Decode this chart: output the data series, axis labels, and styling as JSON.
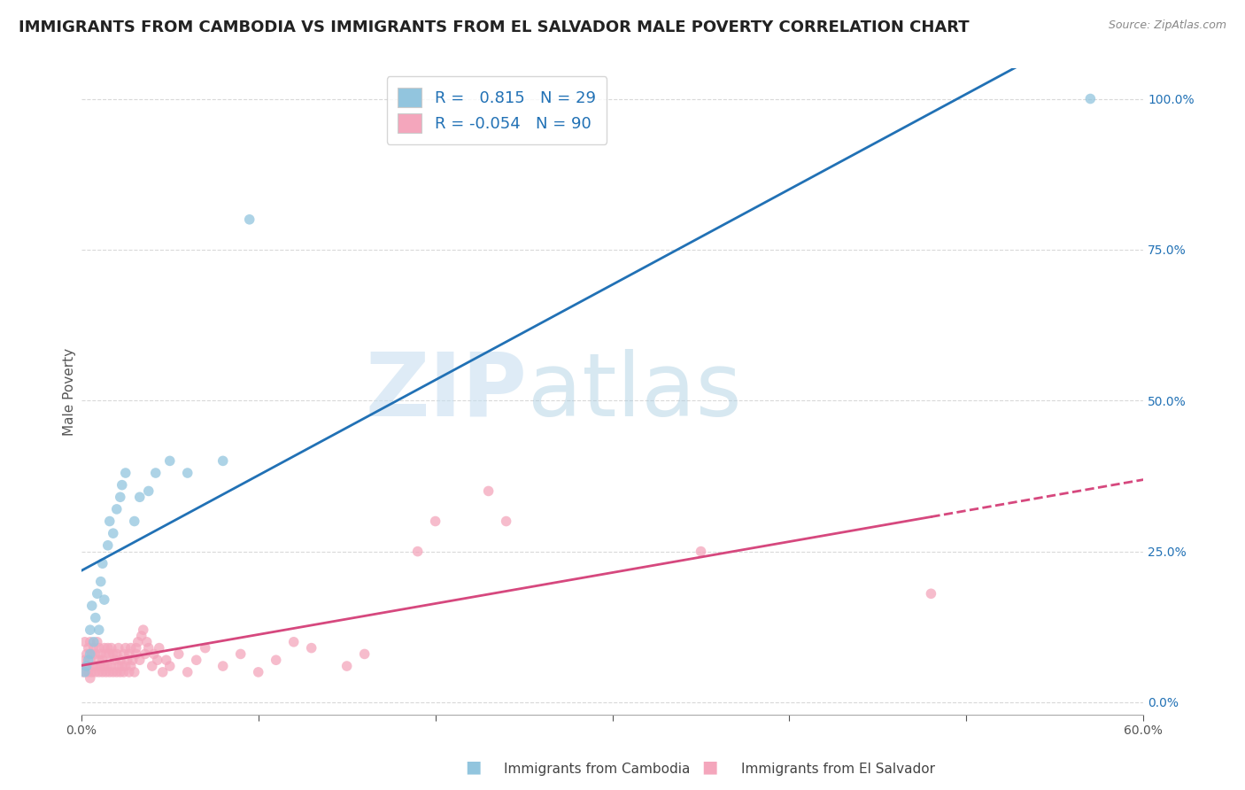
{
  "title": "IMMIGRANTS FROM CAMBODIA VS IMMIGRANTS FROM EL SALVADOR MALE POVERTY CORRELATION CHART",
  "source": "Source: ZipAtlas.com",
  "xlabel_cambodia": "Immigrants from Cambodia",
  "xlabel_elsalvador": "Immigrants from El Salvador",
  "ylabel": "Male Poverty",
  "xlim": [
    0.0,
    0.6
  ],
  "ylim": [
    -0.02,
    1.05
  ],
  "xticks": [
    0.0,
    0.1,
    0.2,
    0.3,
    0.4,
    0.5,
    0.6
  ],
  "xticklabels": [
    "0.0%",
    "",
    "",
    "",
    "",
    "",
    "60.0%"
  ],
  "yticks": [
    0.0,
    0.25,
    0.5,
    0.75,
    1.0
  ],
  "yticklabels": [
    "0.0%",
    "25.0%",
    "50.0%",
    "75.0%",
    "100.0%"
  ],
  "cambodia_color": "#92c5de",
  "elsalvador_color": "#f4a6bc",
  "cambodia_trend_color": "#2171b5",
  "elsalvador_trend_color": "#d6487e",
  "R_cambodia": 0.815,
  "N_cambodia": 29,
  "R_elsalvador": -0.054,
  "N_elsalvador": 90,
  "legend_text_color": "#2171b5",
  "watermark_zip": "ZIP",
  "watermark_atlas": "atlas",
  "background_color": "#ffffff",
  "grid_color": "#d0d0d0",
  "title_fontsize": 13,
  "axis_label_fontsize": 11,
  "tick_fontsize": 10,
  "cambodia_scatter": {
    "x": [
      0.002,
      0.003,
      0.004,
      0.005,
      0.005,
      0.006,
      0.007,
      0.008,
      0.009,
      0.01,
      0.011,
      0.012,
      0.013,
      0.015,
      0.016,
      0.018,
      0.02,
      0.022,
      0.023,
      0.025,
      0.03,
      0.033,
      0.038,
      0.042,
      0.05,
      0.06,
      0.08,
      0.095,
      0.57
    ],
    "y": [
      0.05,
      0.06,
      0.07,
      0.08,
      0.12,
      0.16,
      0.1,
      0.14,
      0.18,
      0.12,
      0.2,
      0.23,
      0.17,
      0.26,
      0.3,
      0.28,
      0.32,
      0.34,
      0.36,
      0.38,
      0.3,
      0.34,
      0.35,
      0.38,
      0.4,
      0.38,
      0.4,
      0.8,
      1.0
    ]
  },
  "elsalvador_scatter": {
    "x": [
      0.001,
      0.002,
      0.002,
      0.003,
      0.003,
      0.004,
      0.004,
      0.005,
      0.005,
      0.005,
      0.006,
      0.006,
      0.007,
      0.007,
      0.008,
      0.008,
      0.009,
      0.009,
      0.01,
      0.01,
      0.01,
      0.011,
      0.011,
      0.012,
      0.012,
      0.013,
      0.013,
      0.014,
      0.014,
      0.015,
      0.015,
      0.016,
      0.016,
      0.017,
      0.017,
      0.018,
      0.018,
      0.019,
      0.02,
      0.02,
      0.021,
      0.021,
      0.022,
      0.022,
      0.023,
      0.024,
      0.024,
      0.025,
      0.025,
      0.026,
      0.027,
      0.027,
      0.028,
      0.028,
      0.029,
      0.03,
      0.031,
      0.031,
      0.032,
      0.033,
      0.034,
      0.035,
      0.036,
      0.037,
      0.038,
      0.04,
      0.041,
      0.043,
      0.044,
      0.046,
      0.048,
      0.05,
      0.055,
      0.06,
      0.065,
      0.07,
      0.08,
      0.09,
      0.1,
      0.11,
      0.12,
      0.13,
      0.15,
      0.16,
      0.19,
      0.2,
      0.23,
      0.24,
      0.35,
      0.48
    ],
    "y": [
      0.05,
      0.07,
      0.1,
      0.06,
      0.08,
      0.05,
      0.09,
      0.04,
      0.07,
      0.1,
      0.05,
      0.08,
      0.06,
      0.09,
      0.05,
      0.08,
      0.06,
      0.1,
      0.05,
      0.07,
      0.09,
      0.06,
      0.08,
      0.05,
      0.07,
      0.06,
      0.09,
      0.05,
      0.08,
      0.06,
      0.09,
      0.05,
      0.08,
      0.06,
      0.09,
      0.05,
      0.08,
      0.07,
      0.05,
      0.08,
      0.06,
      0.09,
      0.05,
      0.07,
      0.06,
      0.05,
      0.08,
      0.06,
      0.09,
      0.07,
      0.05,
      0.08,
      0.06,
      0.09,
      0.07,
      0.05,
      0.08,
      0.09,
      0.1,
      0.07,
      0.11,
      0.12,
      0.08,
      0.1,
      0.09,
      0.06,
      0.08,
      0.07,
      0.09,
      0.05,
      0.07,
      0.06,
      0.08,
      0.05,
      0.07,
      0.09,
      0.06,
      0.08,
      0.05,
      0.07,
      0.1,
      0.09,
      0.06,
      0.08,
      0.25,
      0.3,
      0.35,
      0.3,
      0.25,
      0.18
    ]
  }
}
